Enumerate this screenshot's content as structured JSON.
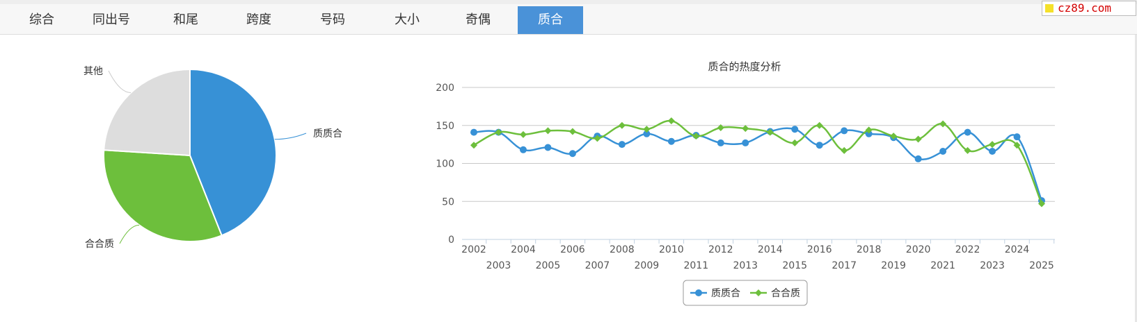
{
  "tabs": [
    {
      "label": "综合",
      "active": false
    },
    {
      "label": "同出号",
      "active": false
    },
    {
      "label": "和尾",
      "active": false
    },
    {
      "label": "跨度",
      "active": false
    },
    {
      "label": "号码",
      "active": false
    },
    {
      "label": "大小",
      "active": false
    },
    {
      "label": "奇偶",
      "active": false
    },
    {
      "label": "质合",
      "active": true
    }
  ],
  "watermark": {
    "text": "cz89.com"
  },
  "colors": {
    "blue": "#3791d6",
    "green": "#6dbf3c",
    "gray": "#dddddd",
    "tab_active": "#4a92d8"
  },
  "chart_data": [
    {
      "type": "pie",
      "slices": [
        {
          "label": "质质合",
          "value": 44,
          "color": "#3791d6"
        },
        {
          "label": "合合质",
          "value": 32,
          "color": "#6dbf3c"
        },
        {
          "label": "其他",
          "value": 24,
          "color": "#dddddd"
        }
      ]
    },
    {
      "type": "line",
      "title": "质合的热度分析",
      "x": [
        2002,
        2003,
        2004,
        2005,
        2006,
        2007,
        2008,
        2009,
        2010,
        2011,
        2012,
        2013,
        2014,
        2015,
        2016,
        2017,
        2018,
        2019,
        2020,
        2021,
        2022,
        2023,
        2024,
        2025
      ],
      "ylim": [
        0,
        200
      ],
      "yticks": [
        0,
        50,
        100,
        150,
        200
      ],
      "grid": true,
      "legend_position": "bottom-center",
      "series": [
        {
          "name": "质质合",
          "color": "#3791d6",
          "marker": "circle",
          "values": [
            141,
            141,
            118,
            121,
            113,
            136,
            125,
            139,
            129,
            137,
            127,
            127,
            142,
            145,
            124,
            143,
            139,
            134,
            106,
            116,
            141,
            116,
            135,
            51
          ]
        },
        {
          "name": "合合质",
          "color": "#6dbf3c",
          "marker": "diamond",
          "values": [
            124,
            141,
            138,
            143,
            142,
            133,
            150,
            145,
            156,
            136,
            147,
            146,
            141,
            127,
            150,
            117,
            144,
            136,
            132,
            152,
            117,
            125,
            124,
            47
          ]
        }
      ]
    }
  ]
}
